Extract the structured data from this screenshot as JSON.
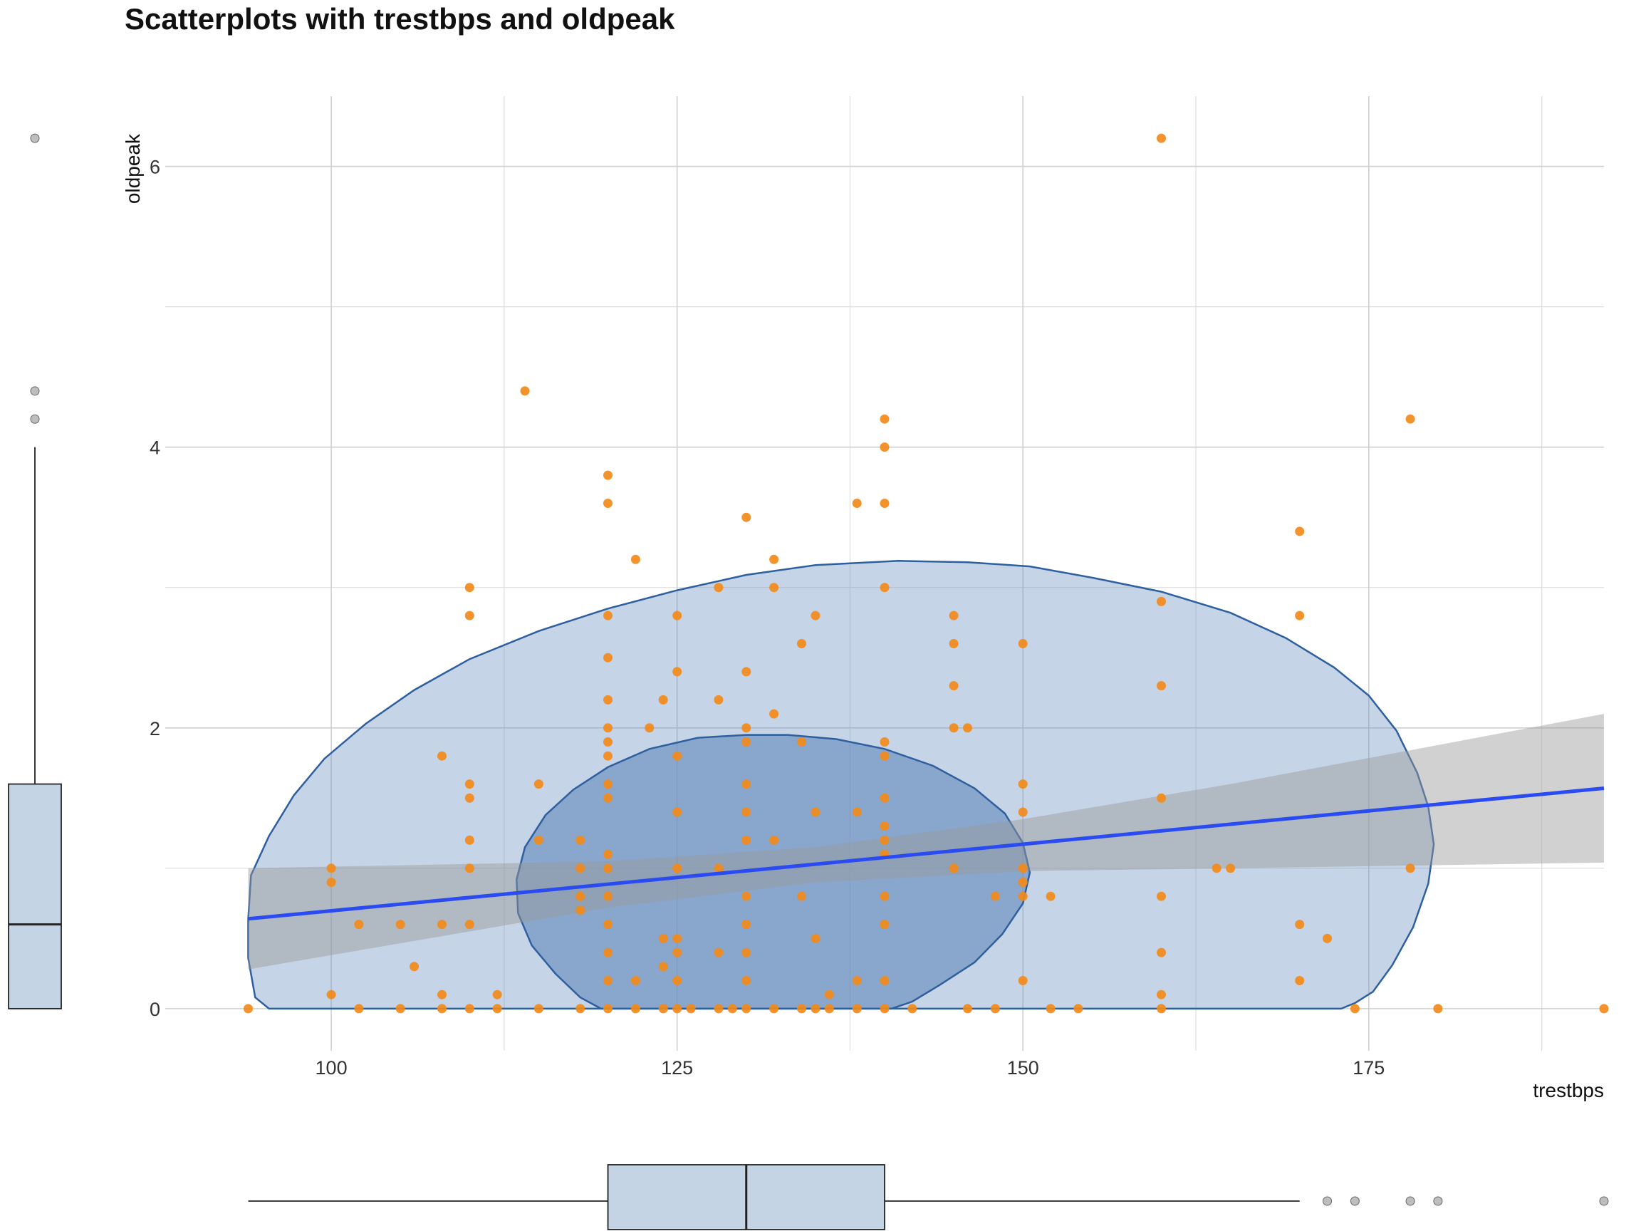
{
  "chart_data": {
    "type": "scatter",
    "title": "Scatterplots with trestbps and oldpeak",
    "xlabel": "trestbps",
    "ylabel": "oldpeak",
    "xlim": [
      88,
      192
    ],
    "ylim": [
      -0.3,
      6.5
    ],
    "x_ticks": [
      100,
      125,
      150,
      175
    ],
    "y_ticks": [
      0,
      2,
      4,
      6
    ],
    "x_minor_ticks": [
      112.5,
      137.5,
      162.5,
      187.5
    ],
    "y_minor_ticks": [
      1,
      3,
      5
    ],
    "grid": true,
    "colors": {
      "points": "#f28a1a",
      "regression_line": "#2b4bf2",
      "confidence_band": "#999999",
      "ellipse_fill": "#6f93c0",
      "ellipse_stroke": "#2e5f9e",
      "boxplot_fill": "#c5d4e4",
      "boxplot_stroke": "#222222"
    },
    "points": [
      [
        94,
        0
      ],
      [
        100,
        1
      ],
      [
        100,
        0.9
      ],
      [
        100,
        0.1
      ],
      [
        102,
        0.6
      ],
      [
        102,
        0
      ],
      [
        105,
        0.6
      ],
      [
        105,
        0
      ],
      [
        106,
        0.3
      ],
      [
        108,
        1.8
      ],
      [
        108,
        0.6
      ],
      [
        108,
        0.1
      ],
      [
        108,
        0
      ],
      [
        110,
        3
      ],
      [
        110,
        2.8
      ],
      [
        110,
        1.6
      ],
      [
        110,
        1.5
      ],
      [
        110,
        1.2
      ],
      [
        110,
        1
      ],
      [
        110,
        0.6
      ],
      [
        110,
        0
      ],
      [
        112,
        0.1
      ],
      [
        112,
        0
      ],
      [
        114,
        4.4
      ],
      [
        115,
        1.6
      ],
      [
        115,
        1.2
      ],
      [
        115,
        0
      ],
      [
        118,
        1.2
      ],
      [
        118,
        1
      ],
      [
        118,
        0.8
      ],
      [
        118,
        0.7
      ],
      [
        118,
        0
      ],
      [
        120,
        3.8
      ],
      [
        120,
        3.6
      ],
      [
        120,
        2.8
      ],
      [
        120,
        2.5
      ],
      [
        120,
        2.2
      ],
      [
        120,
        2
      ],
      [
        120,
        1.9
      ],
      [
        120,
        1.8
      ],
      [
        120,
        1.6
      ],
      [
        120,
        1.5
      ],
      [
        120,
        1.1
      ],
      [
        120,
        1
      ],
      [
        120,
        0.8
      ],
      [
        120,
        0.6
      ],
      [
        120,
        0.4
      ],
      [
        120,
        0.2
      ],
      [
        120,
        0
      ],
      [
        122,
        3.2
      ],
      [
        122,
        0.2
      ],
      [
        122,
        0
      ],
      [
        123,
        2
      ],
      [
        124,
        2.2
      ],
      [
        124,
        0.5
      ],
      [
        124,
        0.3
      ],
      [
        124,
        0
      ],
      [
        125,
        2.8
      ],
      [
        125,
        2.4
      ],
      [
        125,
        1.8
      ],
      [
        125,
        1.4
      ],
      [
        125,
        1
      ],
      [
        125,
        0.5
      ],
      [
        125,
        0.4
      ],
      [
        125,
        0.2
      ],
      [
        125,
        0
      ],
      [
        126,
        0
      ],
      [
        128,
        3
      ],
      [
        128,
        2.2
      ],
      [
        128,
        1
      ],
      [
        128,
        0.4
      ],
      [
        128,
        0
      ],
      [
        129,
        0
      ],
      [
        130,
        3.5
      ],
      [
        130,
        2.4
      ],
      [
        130,
        2
      ],
      [
        130,
        1.9
      ],
      [
        130,
        1.6
      ],
      [
        130,
        1.4
      ],
      [
        130,
        1.2
      ],
      [
        130,
        0.8
      ],
      [
        130,
        0.6
      ],
      [
        130,
        0.4
      ],
      [
        130,
        0.2
      ],
      [
        130,
        0
      ],
      [
        132,
        3.2
      ],
      [
        132,
        3
      ],
      [
        132,
        2.1
      ],
      [
        132,
        1.2
      ],
      [
        132,
        0
      ],
      [
        134,
        2.6
      ],
      [
        134,
        1.9
      ],
      [
        134,
        0.8
      ],
      [
        134,
        0
      ],
      [
        135,
        2.8
      ],
      [
        135,
        1.4
      ],
      [
        135,
        0.5
      ],
      [
        135,
        0
      ],
      [
        136,
        0.1
      ],
      [
        136,
        0
      ],
      [
        138,
        3.6
      ],
      [
        138,
        1.4
      ],
      [
        138,
        0.2
      ],
      [
        138,
        0
      ],
      [
        140,
        4.2
      ],
      [
        140,
        4
      ],
      [
        140,
        3.6
      ],
      [
        140,
        3
      ],
      [
        140,
        1.9
      ],
      [
        140,
        1.8
      ],
      [
        140,
        1.5
      ],
      [
        140,
        1.3
      ],
      [
        140,
        1.2
      ],
      [
        140,
        1.1
      ],
      [
        140,
        0.8
      ],
      [
        140,
        0.6
      ],
      [
        140,
        0.2
      ],
      [
        140,
        0
      ],
      [
        142,
        0
      ],
      [
        145,
        2.8
      ],
      [
        145,
        2.6
      ],
      [
        145,
        2.3
      ],
      [
        145,
        2
      ],
      [
        145,
        1
      ],
      [
        146,
        2
      ],
      [
        146,
        0
      ],
      [
        148,
        0.8
      ],
      [
        148,
        0
      ],
      [
        150,
        2.6
      ],
      [
        150,
        1.6
      ],
      [
        150,
        1.4
      ],
      [
        150,
        1
      ],
      [
        150,
        0.9
      ],
      [
        150,
        0.8
      ],
      [
        150,
        0.2
      ],
      [
        152,
        0.8
      ],
      [
        152,
        0
      ],
      [
        154,
        0
      ],
      [
        160,
        6.2
      ],
      [
        160,
        2.9
      ],
      [
        160,
        2.3
      ],
      [
        160,
        1.5
      ],
      [
        160,
        0.8
      ],
      [
        160,
        0.4
      ],
      [
        160,
        0.1
      ],
      [
        160,
        0
      ],
      [
        164,
        1
      ],
      [
        165,
        1
      ],
      [
        170,
        3.4
      ],
      [
        170,
        2.8
      ],
      [
        170,
        0.6
      ],
      [
        170,
        0.2
      ],
      [
        172,
        0.5
      ],
      [
        174,
        0
      ],
      [
        178,
        4.2
      ],
      [
        178,
        1
      ],
      [
        180,
        0
      ],
      [
        192,
        0
      ]
    ],
    "regression": {
      "x_range": [
        94,
        192
      ],
      "y_at_start": 0.64,
      "y_at_end": 1.57,
      "ci_upper": [
        [
          94,
          1.0
        ],
        [
          120,
          1.05
        ],
        [
          135,
          1.15
        ],
        [
          150,
          1.35
        ],
        [
          165,
          1.6
        ],
        [
          192,
          2.1
        ]
      ],
      "ci_lower": [
        [
          94,
          0.28
        ],
        [
          110,
          0.55
        ],
        [
          120,
          0.72
        ],
        [
          135,
          0.9
        ],
        [
          150,
          0.98
        ],
        [
          165,
          1.0
        ],
        [
          192,
          1.04
        ]
      ]
    },
    "density_contours": [
      {
        "level": "outer",
        "polygon": [
          [
            94,
            0.64
          ],
          [
            94.2,
            0.95
          ],
          [
            95.5,
            1.23
          ],
          [
            97.3,
            1.52
          ],
          [
            99.5,
            1.78
          ],
          [
            102.5,
            2.03
          ],
          [
            106,
            2.27
          ],
          [
            110,
            2.49
          ],
          [
            115,
            2.69
          ],
          [
            120,
            2.85
          ],
          [
            125,
            2.98
          ],
          [
            130,
            3.09
          ],
          [
            135,
            3.16
          ],
          [
            141,
            3.19
          ],
          [
            146,
            3.18
          ],
          [
            150.5,
            3.15
          ],
          [
            155,
            3.07
          ],
          [
            160,
            2.97
          ],
          [
            165,
            2.82
          ],
          [
            169,
            2.64
          ],
          [
            172.5,
            2.43
          ],
          [
            175,
            2.23
          ],
          [
            177,
            1.98
          ],
          [
            178.5,
            1.68
          ],
          [
            179.3,
            1.44
          ],
          [
            179.7,
            1.17
          ],
          [
            179.3,
            0.89
          ],
          [
            178.2,
            0.58
          ],
          [
            176.7,
            0.31
          ],
          [
            175.3,
            0.12
          ],
          [
            174,
            0.04
          ],
          [
            173,
            0
          ],
          [
            95.5,
            0
          ],
          [
            94.5,
            0.08
          ],
          [
            94,
            0.36
          ]
        ]
      },
      {
        "level": "inner",
        "polygon": [
          [
            119.5,
            0
          ],
          [
            118,
            0.08
          ],
          [
            116.2,
            0.25
          ],
          [
            114.5,
            0.45
          ],
          [
            113.5,
            0.68
          ],
          [
            113.4,
            0.92
          ],
          [
            114,
            1.15
          ],
          [
            115.5,
            1.38
          ],
          [
            117.5,
            1.56
          ],
          [
            120,
            1.72
          ],
          [
            123,
            1.85
          ],
          [
            126.5,
            1.93
          ],
          [
            130,
            1.95
          ],
          [
            133,
            1.95
          ],
          [
            136.5,
            1.92
          ],
          [
            140,
            1.85
          ],
          [
            143.5,
            1.73
          ],
          [
            146.5,
            1.57
          ],
          [
            148.7,
            1.39
          ],
          [
            150,
            1.18
          ],
          [
            150.5,
            0.97
          ],
          [
            150,
            0.75
          ],
          [
            148.5,
            0.53
          ],
          [
            146.5,
            0.33
          ],
          [
            144,
            0.17
          ],
          [
            142,
            0.05
          ],
          [
            140.5,
            0
          ]
        ]
      }
    ],
    "marginal_boxplots": {
      "trestbps": {
        "q1": 120,
        "median": 130,
        "q3": 140,
        "whisker_low": 94,
        "whisker_high": 170,
        "outliers": [
          172,
          174,
          178,
          180,
          192
        ]
      },
      "oldpeak": {
        "q1": 0,
        "median": 0.6,
        "q3": 1.6,
        "whisker_low": 0,
        "whisker_high": 4,
        "outliers": [
          4.2,
          4.4,
          6.2
        ]
      }
    }
  }
}
